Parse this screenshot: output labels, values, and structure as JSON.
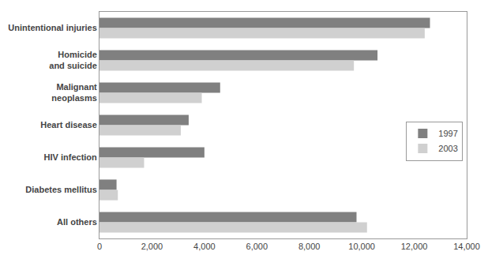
{
  "chart_data": {
    "type": "bar",
    "orientation": "horizontal",
    "categories": [
      "Unintentional injuries",
      "Homicide\nand suicide",
      "Malignant\nneoplasms",
      "Heart disease",
      "HIV infection",
      "Diabetes mellitus",
      "All others"
    ],
    "series": [
      {
        "name": "1997",
        "color": "#808080",
        "values": [
          12600,
          10600,
          4600,
          3400,
          4000,
          650,
          9800
        ]
      },
      {
        "name": "2003",
        "color": "#d0d0d0",
        "values": [
          12400,
          9700,
          3900,
          3100,
          1700,
          700,
          10200
        ]
      }
    ],
    "xlim": [
      0,
      14000
    ],
    "xticks": [
      0,
      {
        "value": 2000,
        "label": "2,000"
      },
      {
        "value": 4000,
        "label": "4,000"
      },
      {
        "value": 6000,
        "label": "6,000"
      },
      {
        "value": 8000,
        "label": "8,000"
      },
      {
        "value": 10000,
        "label": "10,000"
      },
      {
        "value": 12000,
        "label": "12,000"
      },
      {
        "value": 14000,
        "label": "14,000"
      }
    ],
    "grid": false,
    "legend": "right"
  }
}
